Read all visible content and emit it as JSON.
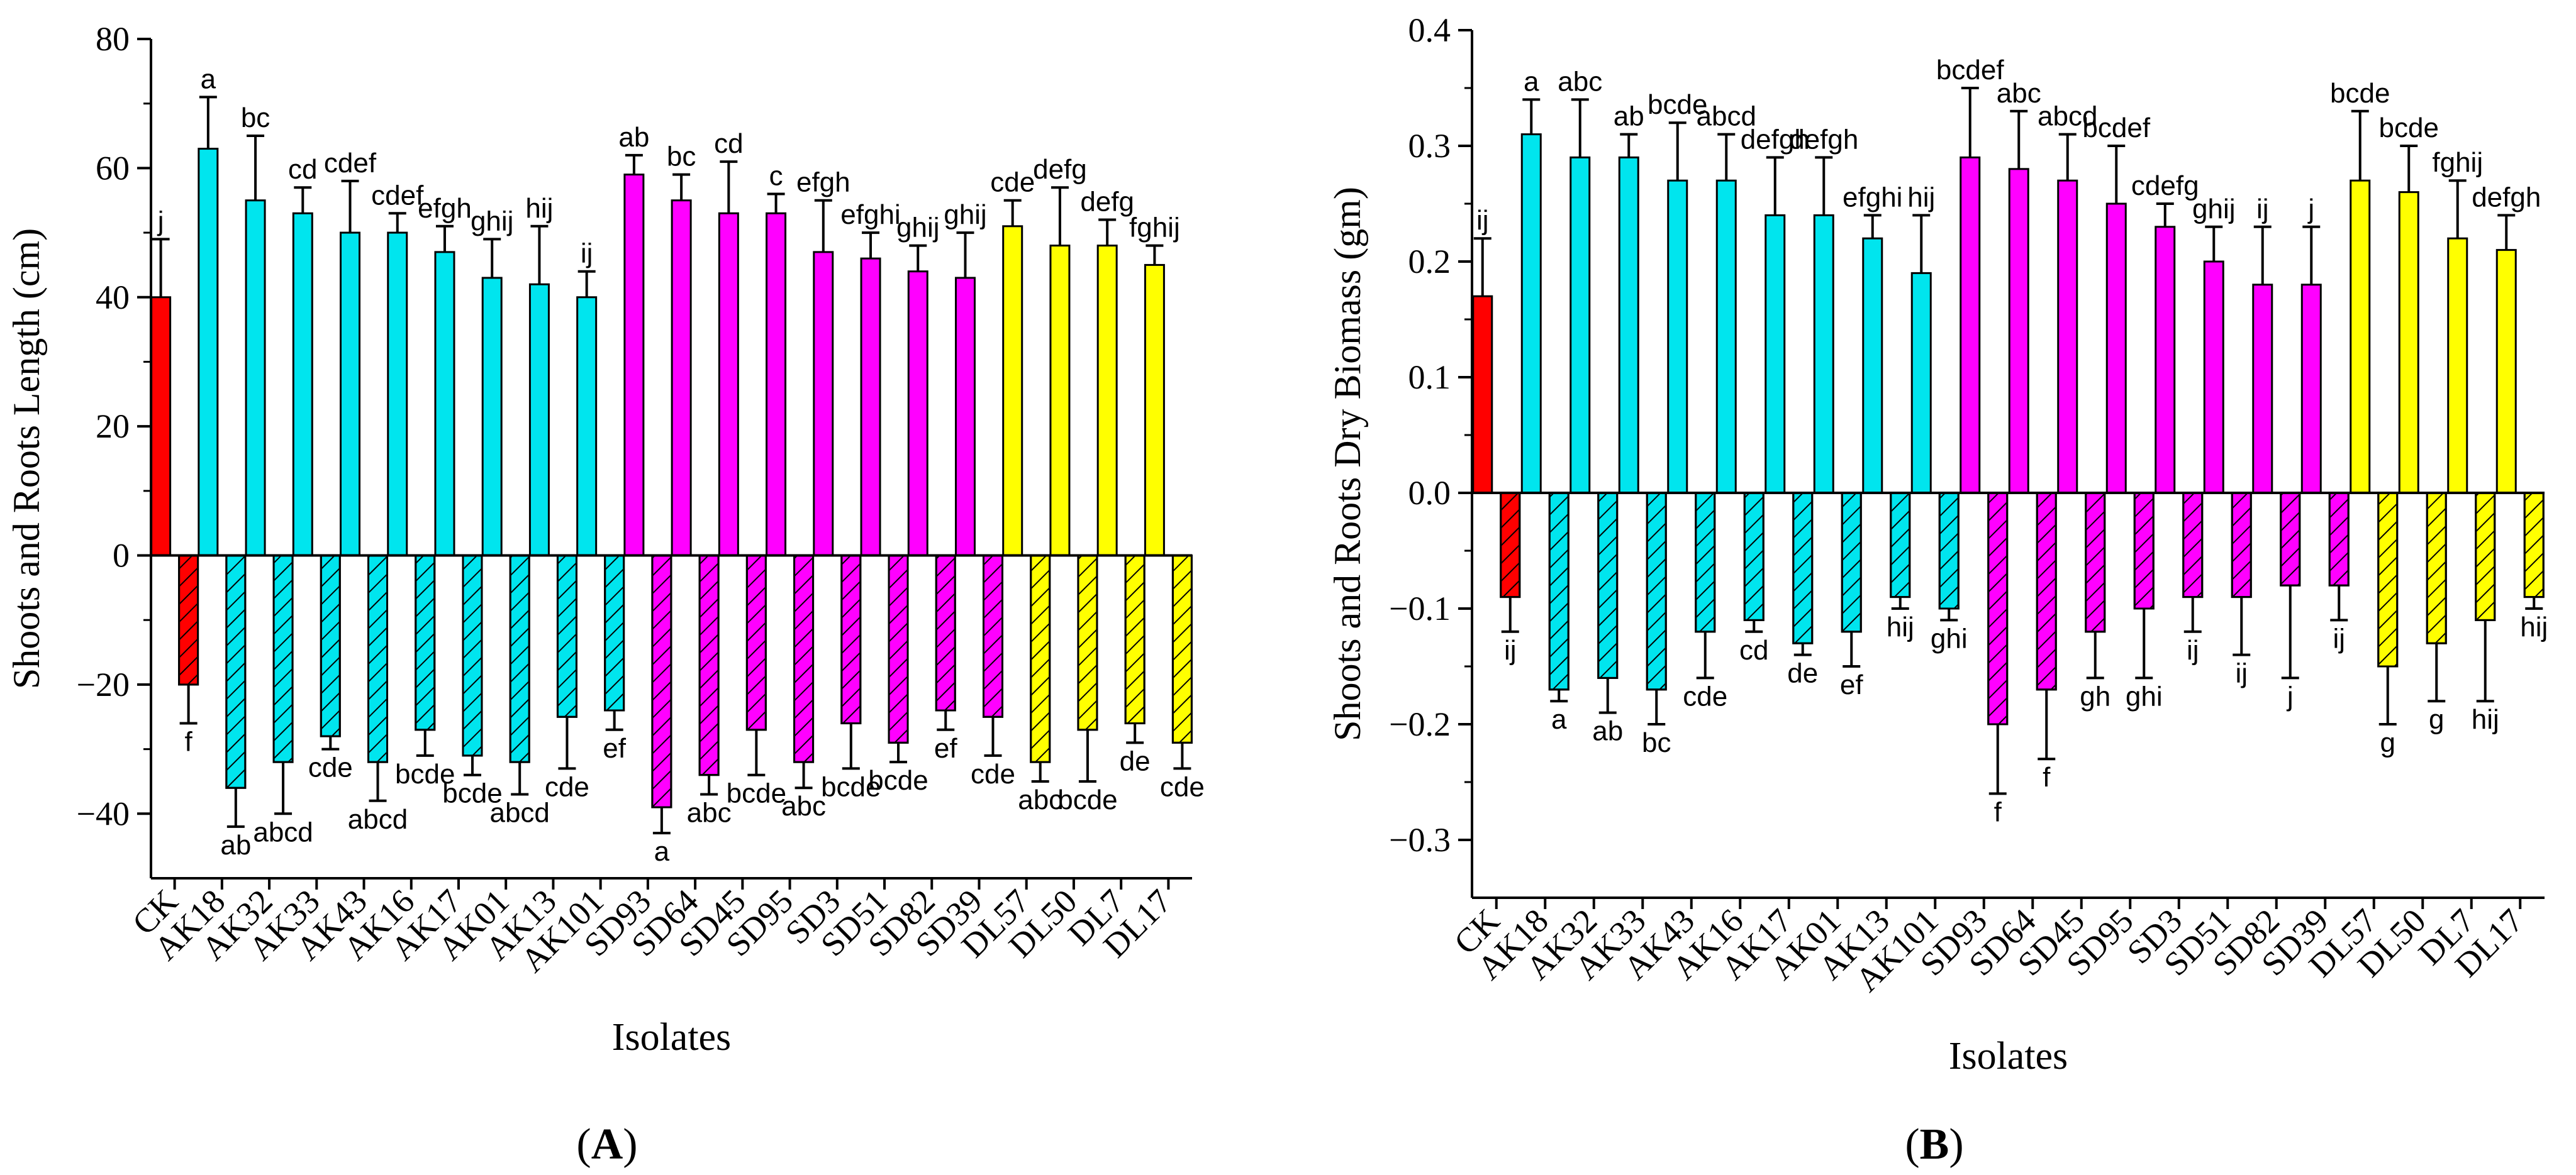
{
  "colors": {
    "control": "#ff0000",
    "AK": "#00e5ee",
    "SD": "#ff00ff",
    "DL": "#ffff00",
    "axis": "#000000"
  },
  "chart_data": [
    {
      "type": "bar",
      "panel_label": "A",
      "title": "",
      "xlabel": "Isolates",
      "ylabel": "Shoots and Roots Length (cm)",
      "ylim": [
        -50,
        80
      ],
      "yticks": [
        -40,
        -20,
        0,
        20,
        40,
        60,
        80
      ],
      "ytick_labels": [
        "−40",
        "−20",
        "0",
        "20",
        "40",
        "60",
        "80"
      ],
      "categories": [
        "CK",
        "AK18",
        "AK32",
        "AK33",
        "AK43",
        "AK16",
        "AK17",
        "AK01",
        "AK13",
        "AK101",
        "SD93",
        "SD64",
        "SD45",
        "SD95",
        "SD3",
        "SD51",
        "SD82",
        "SD39",
        "DL57",
        "DL50",
        "DL7",
        "DL17"
      ],
      "groups": [
        "control",
        "AK",
        "AK",
        "AK",
        "AK",
        "AK",
        "AK",
        "AK",
        "AK",
        "AK",
        "SD",
        "SD",
        "SD",
        "SD",
        "SD",
        "SD",
        "SD",
        "SD",
        "DL",
        "DL",
        "DL",
        "DL"
      ],
      "series": [
        {
          "name": "Shoots",
          "pattern": "solid",
          "values": [
            40,
            63,
            55,
            53,
            50,
            50,
            47,
            43,
            42,
            40,
            59,
            55,
            53,
            53,
            47,
            46,
            44,
            43,
            51,
            48,
            48,
            45
          ],
          "errors": [
            9,
            8,
            10,
            4,
            8,
            3,
            4,
            6,
            9,
            4,
            3,
            4,
            8,
            3,
            8,
            4,
            4,
            7,
            4,
            9,
            4,
            3
          ],
          "letters": [
            "j",
            "a",
            "bc",
            "cd",
            "cdef",
            "cdef",
            "efgh",
            "ghij",
            "hij",
            "ij",
            "ab",
            "bc",
            "cd",
            "c",
            "efgh",
            "efghi",
            "ghij",
            "ghij",
            "cde",
            "defg",
            "defg",
            "fghij"
          ]
        },
        {
          "name": "Roots",
          "pattern": "hatched",
          "values": [
            -20,
            -36,
            -32,
            -28,
            -32,
            -27,
            -31,
            -32,
            -25,
            -24,
            -39,
            -34,
            -27,
            -32,
            -26,
            -29,
            -24,
            -25,
            -32,
            -27,
            -26,
            -29
          ],
          "errors": [
            6,
            6,
            8,
            2,
            6,
            4,
            3,
            5,
            8,
            3,
            4,
            3,
            7,
            4,
            7,
            3,
            3,
            6,
            3,
            8,
            3,
            4
          ],
          "letters": [
            "f",
            "ab",
            "abcd",
            "cde",
            "abcd",
            "bcde",
            "bcde",
            "abcd",
            "cde",
            "ef",
            "a",
            "abc",
            "bcde",
            "abc",
            "bcde",
            "bcde",
            "ef",
            "cde",
            "abc",
            "bcde",
            "de",
            "cde"
          ]
        }
      ]
    },
    {
      "type": "bar",
      "panel_label": "B",
      "title": "",
      "xlabel": "Isolates",
      "ylabel": "Shoots and Roots Dry Biomass (gm)",
      "ylim": [
        -0.35,
        0.4
      ],
      "yticks": [
        -0.3,
        -0.2,
        -0.1,
        0.0,
        0.1,
        0.2,
        0.3,
        0.4
      ],
      "ytick_labels": [
        "−0.3",
        "−0.2",
        "−0.1",
        "0.0",
        "0.1",
        "0.2",
        "0.3",
        "0.4"
      ],
      "categories": [
        "CK",
        "AK18",
        "AK32",
        "AK33",
        "AK43",
        "AK16",
        "AK17",
        "AK01",
        "AK13",
        "AK101",
        "SD93",
        "SD64",
        "SD45",
        "SD95",
        "SD3",
        "SD51",
        "SD82",
        "SD39",
        "DL57",
        "DL50",
        "DL7",
        "DL17"
      ],
      "groups": [
        "control",
        "AK",
        "AK",
        "AK",
        "AK",
        "AK",
        "AK",
        "AK",
        "AK",
        "AK",
        "SD",
        "SD",
        "SD",
        "SD",
        "SD",
        "SD",
        "SD",
        "SD",
        "DL",
        "DL",
        "DL",
        "DL"
      ],
      "series": [
        {
          "name": "Shoots",
          "pattern": "solid",
          "values": [
            0.17,
            0.31,
            0.29,
            0.29,
            0.27,
            0.27,
            0.24,
            0.24,
            0.22,
            0.19,
            0.29,
            0.28,
            0.27,
            0.25,
            0.23,
            0.2,
            0.18,
            0.18,
            0.27,
            0.26,
            0.22,
            0.21
          ],
          "errors": [
            0.05,
            0.03,
            0.05,
            0.02,
            0.05,
            0.04,
            0.05,
            0.05,
            0.02,
            0.05,
            0.06,
            0.05,
            0.04,
            0.05,
            0.02,
            0.03,
            0.05,
            0.05,
            0.06,
            0.04,
            0.05,
            0.03
          ],
          "letters": [
            "ij",
            "a",
            "abc",
            "ab",
            "bcde",
            "abcd",
            "defgh",
            "defgh",
            "efghi",
            "hij",
            "bcdef",
            "abc",
            "abcd",
            "bcdef",
            "cdefg",
            "ghij",
            "ij",
            "j",
            "bcde",
            "bcde",
            "fghij",
            "defgh"
          ]
        },
        {
          "name": "Roots",
          "pattern": "hatched",
          "values": [
            -0.09,
            -0.17,
            -0.16,
            -0.17,
            -0.12,
            -0.11,
            -0.13,
            -0.12,
            -0.09,
            -0.1,
            -0.2,
            -0.17,
            -0.12,
            -0.1,
            -0.09,
            -0.09,
            -0.08,
            -0.08,
            -0.15,
            -0.13,
            -0.11,
            -0.09
          ],
          "errors": [
            0.03,
            0.01,
            0.03,
            0.03,
            0.04,
            0.01,
            0.01,
            0.03,
            0.01,
            0.01,
            0.06,
            0.06,
            0.04,
            0.06,
            0.03,
            0.05,
            0.08,
            0.03,
            0.05,
            0.05,
            0.07,
            0.01
          ],
          "letters": [
            "ij",
            "a",
            "ab",
            "bc",
            "cde",
            "cd",
            "de",
            "ef",
            "hij",
            "ghi",
            "f",
            "f",
            "gh",
            "ghi",
            "ij",
            "ij",
            "j",
            "ij",
            "g",
            "g",
            "hij",
            "hij"
          ]
        }
      ]
    }
  ]
}
